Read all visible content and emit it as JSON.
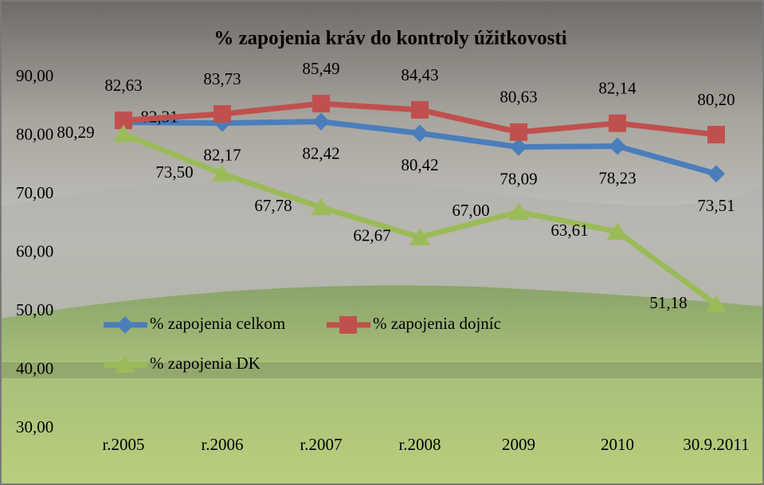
{
  "chart_data": {
    "type": "line",
    "title": "% zapojenia kráv do kontroly úžitkovosti",
    "categories": [
      "r.2005",
      "r.2006",
      "r.2007",
      "r.2008",
      "2009",
      "2010",
      "30.9.2011"
    ],
    "series": [
      {
        "name": "% zapojenia celkom",
        "color": "#4a7ebb",
        "marker": "diamond",
        "values": [
          82.31,
          82.17,
          82.42,
          80.42,
          78.09,
          78.23,
          73.51
        ],
        "value_labels": [
          "82,31",
          "82,17",
          "82,42",
          "80,42",
          "78,09",
          "78,23",
          "73,51"
        ]
      },
      {
        "name": "% zapojenia dojníc",
        "color": "#c0504d",
        "marker": "square",
        "values": [
          82.63,
          83.73,
          85.49,
          84.43,
          80.63,
          82.14,
          80.2
        ],
        "value_labels": [
          "82,63",
          "83,73",
          "85,49",
          "84,43",
          "80,63",
          "82,14",
          "80,20"
        ]
      },
      {
        "name": "% zapojenia DK",
        "color": "#9bbb59",
        "marker": "triangle",
        "values": [
          80.29,
          73.5,
          67.78,
          62.67,
          67.0,
          63.61,
          51.18
        ],
        "value_labels": [
          "80,29",
          "73,50",
          "67,78",
          "62,67",
          "67,00",
          "63,61",
          "51,18"
        ]
      }
    ],
    "ylim": [
      30,
      90
    ],
    "yticks": [
      {
        "value": 30,
        "label": "30,00"
      },
      {
        "value": 40,
        "label": "40,00"
      },
      {
        "value": 50,
        "label": "50,00"
      },
      {
        "value": 60,
        "label": "60,00"
      },
      {
        "value": 70,
        "label": "70,00"
      },
      {
        "value": 80,
        "label": "80,00"
      },
      {
        "value": 90,
        "label": "90,00"
      }
    ],
    "legend": "lower left"
  }
}
